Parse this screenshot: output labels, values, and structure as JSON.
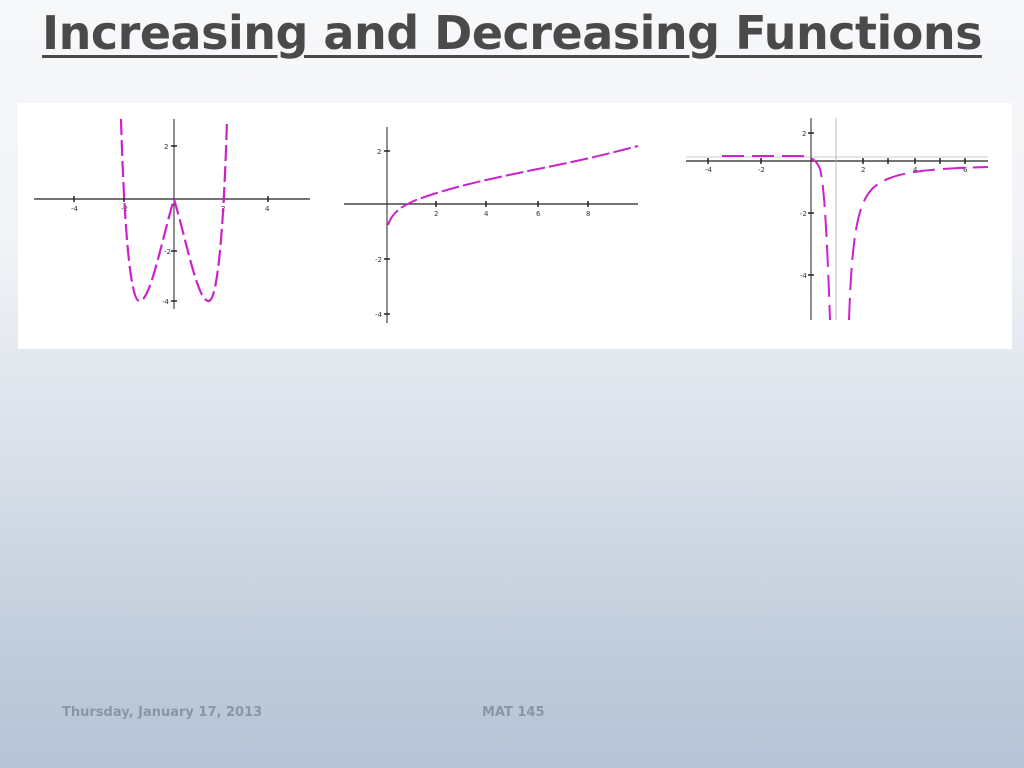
{
  "slide": {
    "title": "Increasing and Decreasing Functions"
  },
  "footer": {
    "date": "Thursday, January 17, 2013",
    "course": "MAT 145"
  },
  "colors": {
    "curve": "#cc22cc",
    "axis": "#222222"
  },
  "graphs": [
    {
      "x_ticks": [
        "-4",
        "-2",
        "2",
        "4"
      ],
      "y_ticks": [
        "2",
        "-2",
        "-4"
      ]
    },
    {
      "x_ticks": [
        "2",
        "4",
        "6",
        "8"
      ],
      "y_ticks": [
        "2",
        "-2",
        "-4"
      ]
    },
    {
      "x_ticks": [
        "-4",
        "-2",
        "2",
        "4",
        "6"
      ],
      "y_ticks": [
        "2",
        "-2",
        "-4"
      ]
    }
  ]
}
